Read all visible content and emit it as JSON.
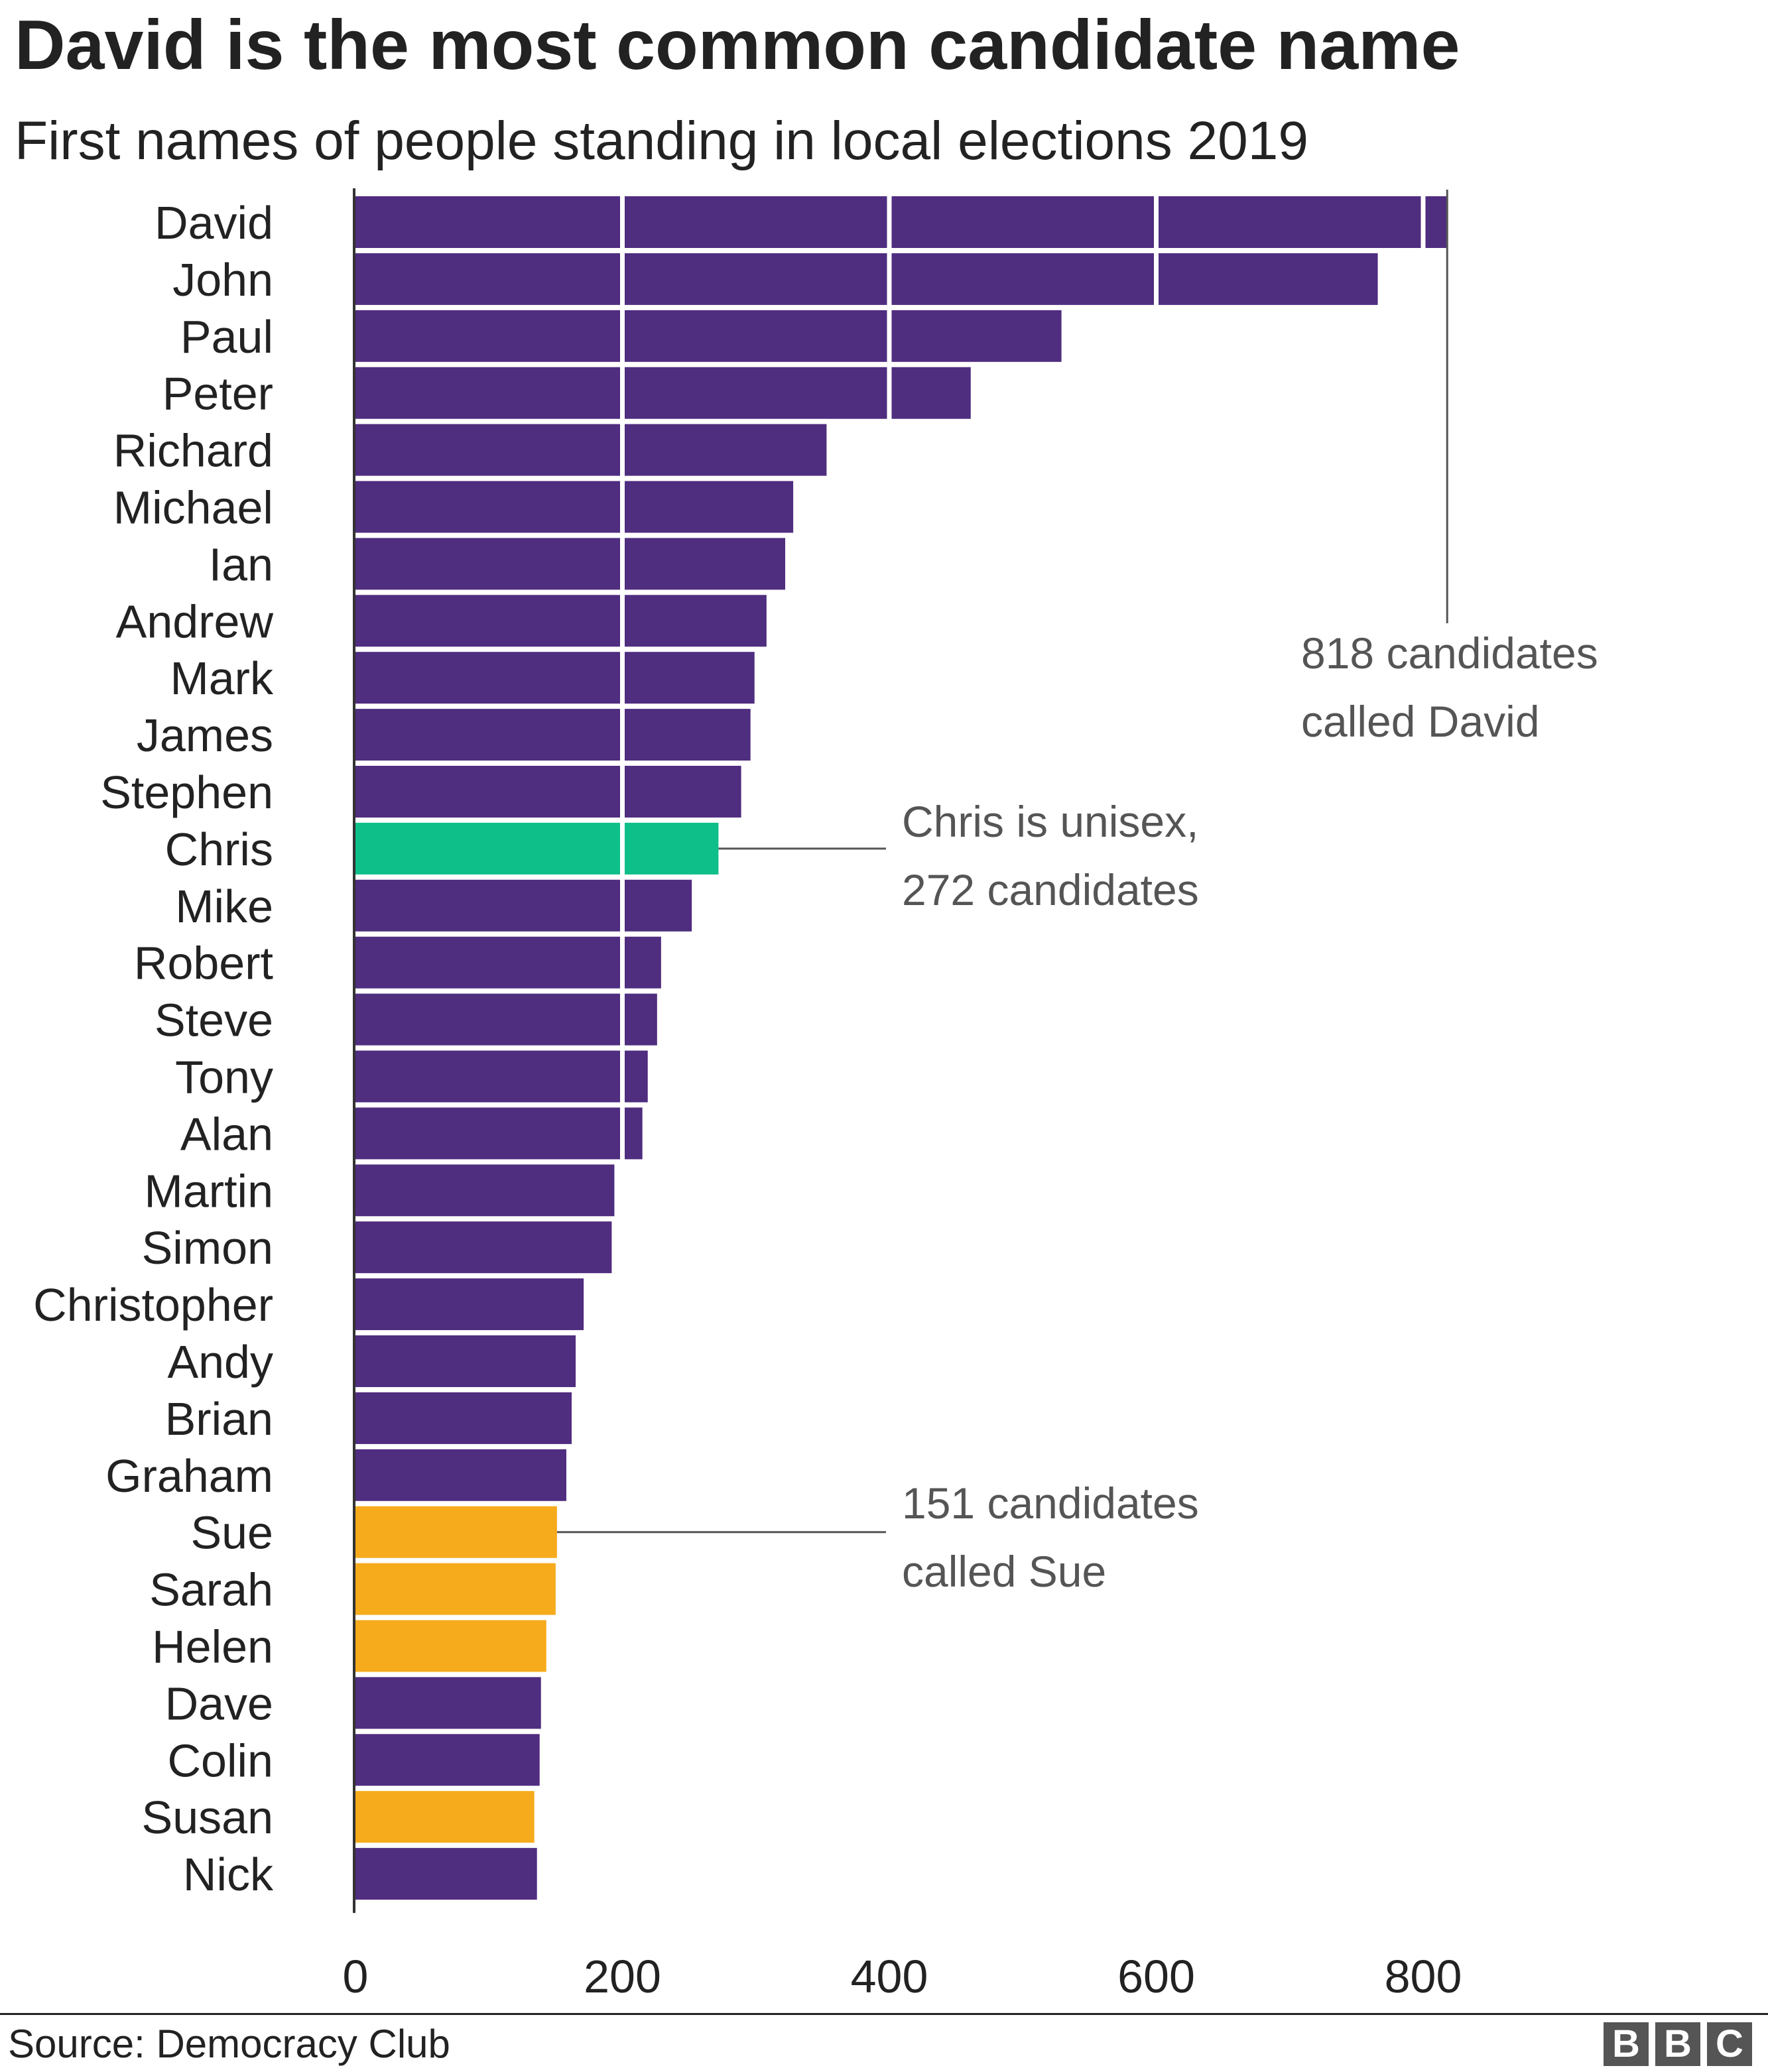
{
  "chart_data": {
    "type": "bar",
    "orientation": "horizontal",
    "title": "David is the most common candidate name",
    "subtitle": "First names of people standing in local elections 2019",
    "categories": [
      "David",
      "John",
      "Paul",
      "Peter",
      "Richard",
      "Michael",
      "Ian",
      "Andrew",
      "Mark",
      "James",
      "Stephen",
      "Chris",
      "Mike",
      "Robert",
      "Steve",
      "Tony",
      "Alan",
      "Martin",
      "Simon",
      "Christopher",
      "Andy",
      "Brian",
      "Graham",
      "Sue",
      "Sarah",
      "Helen",
      "Dave",
      "Colin",
      "Susan",
      "Nick"
    ],
    "values": [
      818,
      766,
      529,
      461,
      353,
      328,
      322,
      308,
      299,
      296,
      289,
      272,
      252,
      229,
      226,
      219,
      215,
      194,
      192,
      171,
      165,
      162,
      158,
      151,
      150,
      143,
      139,
      138,
      134,
      136
    ],
    "groups": [
      "male",
      "male",
      "male",
      "male",
      "male",
      "male",
      "male",
      "male",
      "male",
      "male",
      "male",
      "unisex",
      "male",
      "male",
      "male",
      "male",
      "male",
      "male",
      "male",
      "male",
      "male",
      "male",
      "male",
      "female",
      "female",
      "female",
      "male",
      "male",
      "female",
      "male"
    ],
    "group_colors": {
      "male": "#4f2d7f",
      "unisex": "#0fbf8a",
      "female": "#f6ab1d"
    },
    "xlim": [
      0,
      900
    ],
    "xticks": [
      0,
      200,
      400,
      600,
      800
    ],
    "xlabel": "",
    "ylabel": "",
    "grid": "vertical white lines over bars",
    "annotations": [
      {
        "target": "David",
        "lines": [
          "818 candidates",
          "called David"
        ]
      },
      {
        "target": "Chris",
        "lines": [
          "Chris is unisex,",
          "272 candidates"
        ]
      },
      {
        "target": "Sue",
        "lines": [
          "151 candidates",
          "called Sue"
        ]
      }
    ]
  },
  "footer": {
    "source": "Source: Democracy Club",
    "logo_letters": [
      "B",
      "B",
      "C"
    ]
  }
}
